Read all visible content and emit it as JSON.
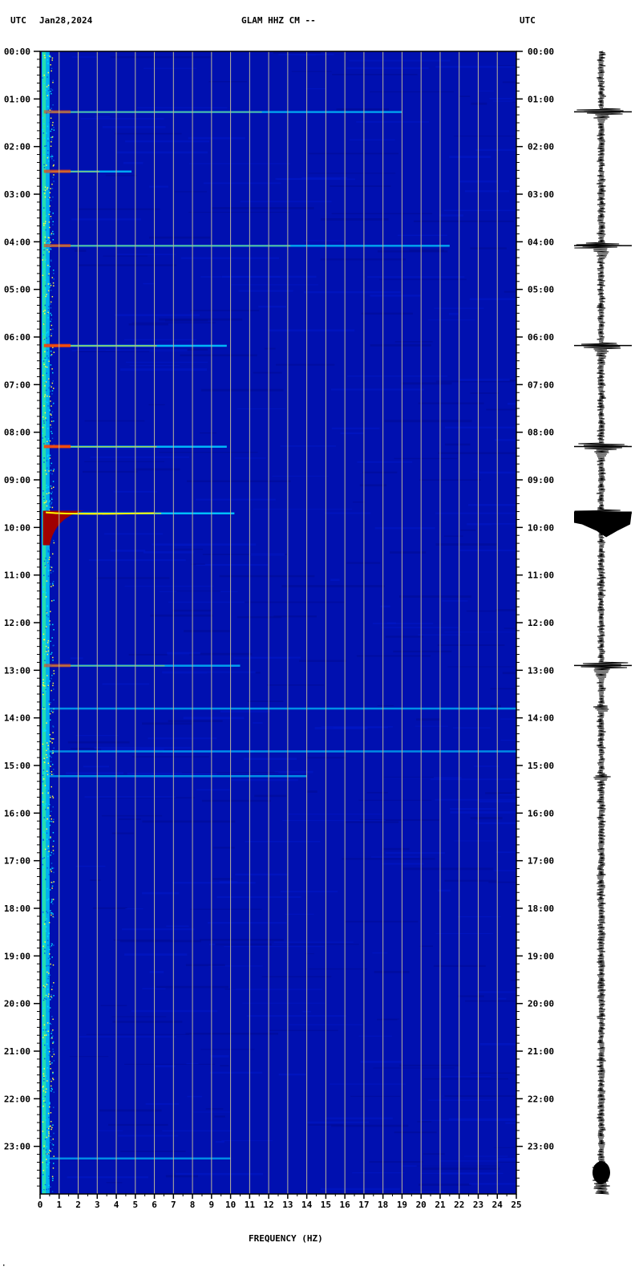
{
  "header": {
    "left_tz": "UTC",
    "date": "Jan28,2024",
    "station": "GLAM HHZ CM --",
    "right_tz": "UTC"
  },
  "chart_data": {
    "type": "heatmap",
    "title": "GLAM HHZ CM --",
    "xlabel": "FREQUENCY (HZ)",
    "ylabel": "UTC",
    "xlim": [
      0,
      25
    ],
    "ylim_hours": [
      0,
      24
    ],
    "x_ticks": [
      "0",
      "1",
      "2",
      "3",
      "4",
      "5",
      "6",
      "7",
      "8",
      "9",
      "10",
      "11",
      "12",
      "13",
      "14",
      "15",
      "16",
      "17",
      "18",
      "19",
      "20",
      "21",
      "22",
      "23",
      "24",
      "25"
    ],
    "y_ticks": [
      "00:00",
      "01:00",
      "02:00",
      "03:00",
      "04:00",
      "05:00",
      "06:00",
      "07:00",
      "08:00",
      "09:00",
      "10:00",
      "11:00",
      "12:00",
      "13:00",
      "14:00",
      "15:00",
      "16:00",
      "17:00",
      "18:00",
      "19:00",
      "20:00",
      "21:00",
      "22:00",
      "23:00"
    ],
    "grid_x": true,
    "colors": {
      "background": "#0010b0",
      "grid": "#b8b49a",
      "low": "#0020c0",
      "mid": "#00c8ff",
      "high": "#ffff00",
      "max": "#a00000"
    },
    "events": [
      {
        "time_h": 1.27,
        "fmax": 19.0,
        "strength": 0.55
      },
      {
        "time_h": 2.52,
        "fmax": 4.8,
        "strength": 0.7
      },
      {
        "time_h": 4.08,
        "fmax": 21.5,
        "strength": 0.6
      },
      {
        "time_h": 6.18,
        "fmax": 9.8,
        "strength": 0.9
      },
      {
        "time_h": 8.3,
        "fmax": 9.8,
        "strength": 0.9
      },
      {
        "time_h": 9.7,
        "fmax": 10.2,
        "strength": 1.0
      },
      {
        "time_h": 12.9,
        "fmax": 10.5,
        "strength": 0.6
      },
      {
        "time_h": 13.8,
        "fmax": 25,
        "strength": 0.35
      },
      {
        "time_h": 14.7,
        "fmax": 25,
        "strength": 0.3
      },
      {
        "time_h": 15.22,
        "fmax": 14,
        "strength": 0.35
      },
      {
        "time_h": 23.25,
        "fmax": 10,
        "strength": 0.3
      }
    ],
    "waveform_events": [
      {
        "time_h": 1.27,
        "amp": 1.0
      },
      {
        "time_h": 4.08,
        "amp": 1.0
      },
      {
        "time_h": 6.18,
        "amp": 1.0
      },
      {
        "time_h": 8.3,
        "amp": 1.0
      },
      {
        "time_h": 9.7,
        "amp": 1.0
      },
      {
        "time_h": 12.9,
        "amp": 1.0
      },
      {
        "time_h": 13.8,
        "amp": 0.3
      },
      {
        "time_h": 15.25,
        "amp": 0.35
      }
    ]
  },
  "footer_mark": "·"
}
